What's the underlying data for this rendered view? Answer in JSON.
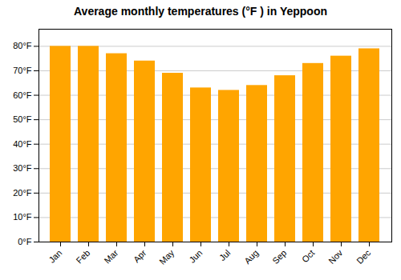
{
  "chart_data": {
    "type": "bar",
    "title": "Average monthly temperatures (°F ) in Yeppoon",
    "categories": [
      "Jan",
      "Feb",
      "Mar",
      "Apr",
      "May",
      "Jun",
      "Jul",
      "Aug",
      "Sep",
      "Oct",
      "Nov",
      "Dec"
    ],
    "values": [
      80,
      80,
      77,
      74,
      69,
      63,
      62,
      64,
      68,
      73,
      76,
      79
    ],
    "color": "#FFA500",
    "ylim": [
      0,
      87
    ],
    "yticks": [
      {
        "value": 0,
        "label": "0°F"
      },
      {
        "value": 10,
        "label": "10°F"
      },
      {
        "value": 20,
        "label": "20°F"
      },
      {
        "value": 30,
        "label": "30°F"
      },
      {
        "value": 40,
        "label": "40°F"
      },
      {
        "value": 50,
        "label": "50°F"
      },
      {
        "value": 60,
        "label": "60°F"
      },
      {
        "value": 70,
        "label": "70°F"
      },
      {
        "value": 80,
        "label": "80°F"
      }
    ],
    "grid": true
  }
}
